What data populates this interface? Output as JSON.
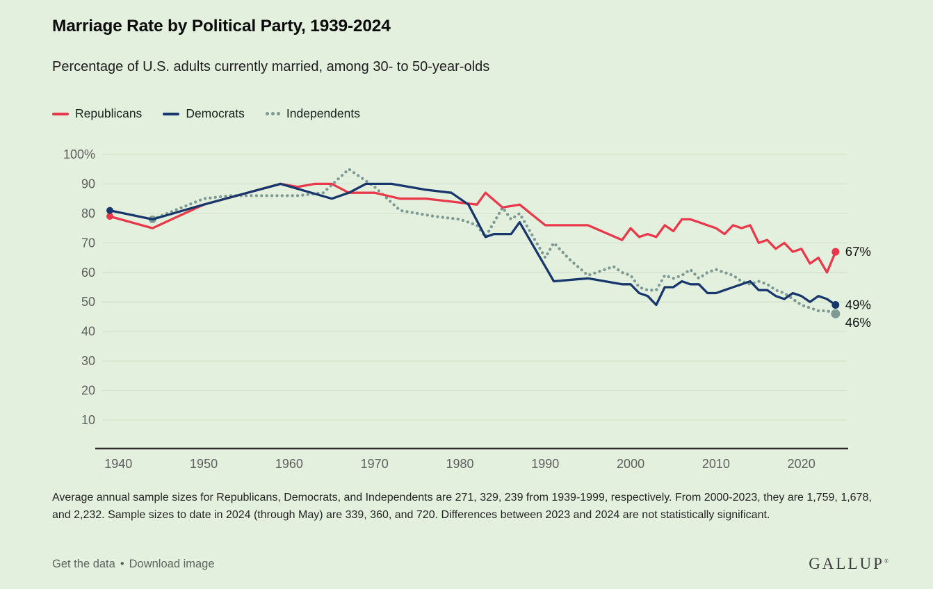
{
  "header": {
    "title": "Marriage Rate by Political Party, 1939-2024",
    "subtitle": "Percentage of U.S. adults currently married, among 30- to 50-year-olds"
  },
  "legend": {
    "items": [
      {
        "label": "Republicans",
        "color": "#ea384b",
        "style": "solid"
      },
      {
        "label": "Democrats",
        "color": "#17366b",
        "style": "solid"
      },
      {
        "label": "Independents",
        "color": "#7d9a94",
        "style": "dotted"
      }
    ]
  },
  "chart_data": {
    "type": "line",
    "title": "Marriage Rate by Political Party, 1939-2024",
    "xlabel": "",
    "ylabel": "Percentage of U.S. adults currently married",
    "x_axis": {
      "range": [
        1939,
        2024
      ],
      "ticks": [
        1940,
        1950,
        1960,
        1970,
        1980,
        1990,
        2000,
        2010,
        2020
      ]
    },
    "y_axis": {
      "range": [
        0,
        100
      ],
      "unit": "%",
      "ticks": [
        {
          "value": 100,
          "label": "100%"
        },
        {
          "value": 90,
          "label": "90"
        },
        {
          "value": 80,
          "label": "80"
        },
        {
          "value": 70,
          "label": "70"
        },
        {
          "value": 60,
          "label": "60"
        },
        {
          "value": 50,
          "label": "50"
        },
        {
          "value": 40,
          "label": "40"
        },
        {
          "value": 30,
          "label": "30"
        },
        {
          "value": 20,
          "label": "20"
        },
        {
          "value": 10,
          "label": "10"
        }
      ]
    },
    "grid": true,
    "legend_position": "top-left",
    "series": [
      {
        "name": "Republicans",
        "color": "#ea384b",
        "line_style": "solid",
        "end_label": "67%",
        "end_label_dy": 0,
        "points": [
          [
            1939,
            79
          ],
          [
            1944,
            75
          ],
          [
            1950,
            83
          ],
          [
            1959,
            90
          ],
          [
            1961,
            89
          ],
          [
            1963,
            90
          ],
          [
            1965,
            90
          ],
          [
            1967,
            87
          ],
          [
            1970,
            87
          ],
          [
            1973,
            85
          ],
          [
            1976,
            85
          ],
          [
            1979,
            84
          ],
          [
            1982,
            83
          ],
          [
            1983,
            87
          ],
          [
            1985,
            82
          ],
          [
            1987,
            83
          ],
          [
            1990,
            76
          ],
          [
            1995,
            76
          ],
          [
            1999,
            71
          ],
          [
            2000,
            75
          ],
          [
            2001,
            72
          ],
          [
            2002,
            73
          ],
          [
            2003,
            72
          ],
          [
            2004,
            76
          ],
          [
            2005,
            74
          ],
          [
            2006,
            78
          ],
          [
            2007,
            78
          ],
          [
            2008,
            77
          ],
          [
            2009,
            76
          ],
          [
            2010,
            75
          ],
          [
            2011,
            73
          ],
          [
            2012,
            76
          ],
          [
            2013,
            75
          ],
          [
            2014,
            76
          ],
          [
            2015,
            70
          ],
          [
            2016,
            71
          ],
          [
            2017,
            68
          ],
          [
            2018,
            70
          ],
          [
            2019,
            67
          ],
          [
            2020,
            68
          ],
          [
            2021,
            63
          ],
          [
            2022,
            65
          ],
          [
            2023,
            60
          ],
          [
            2024,
            67
          ]
        ]
      },
      {
        "name": "Democrats",
        "color": "#17366b",
        "line_style": "solid",
        "end_label": "49%",
        "end_label_dy": 0,
        "points": [
          [
            1939,
            81
          ],
          [
            1944,
            78
          ],
          [
            1950,
            83
          ],
          [
            1959,
            90
          ],
          [
            1965,
            85
          ],
          [
            1967,
            87
          ],
          [
            1969,
            90
          ],
          [
            1972,
            90
          ],
          [
            1976,
            88
          ],
          [
            1979,
            87
          ],
          [
            1981,
            83
          ],
          [
            1983,
            72
          ],
          [
            1984,
            73
          ],
          [
            1986,
            73
          ],
          [
            1987,
            77
          ],
          [
            1991,
            57
          ],
          [
            1995,
            58
          ],
          [
            1999,
            56
          ],
          [
            2000,
            56
          ],
          [
            2001,
            53
          ],
          [
            2002,
            52
          ],
          [
            2003,
            49
          ],
          [
            2004,
            55
          ],
          [
            2005,
            55
          ],
          [
            2006,
            57
          ],
          [
            2007,
            56
          ],
          [
            2008,
            56
          ],
          [
            2009,
            53
          ],
          [
            2010,
            53
          ],
          [
            2011,
            54
          ],
          [
            2012,
            55
          ],
          [
            2013,
            56
          ],
          [
            2014,
            57
          ],
          [
            2015,
            54
          ],
          [
            2016,
            54
          ],
          [
            2017,
            52
          ],
          [
            2018,
            51
          ],
          [
            2019,
            53
          ],
          [
            2020,
            52
          ],
          [
            2021,
            50
          ],
          [
            2022,
            52
          ],
          [
            2023,
            51
          ],
          [
            2024,
            49
          ]
        ]
      },
      {
        "name": "Independents",
        "color": "#7d9a94",
        "line_style": "dotted",
        "end_label": "46%",
        "end_label_dy": 13,
        "points": [
          [
            1944,
            78
          ],
          [
            1950,
            85
          ],
          [
            1953,
            86
          ],
          [
            1957,
            86
          ],
          [
            1961,
            86
          ],
          [
            1964,
            87
          ],
          [
            1967,
            95
          ],
          [
            1970,
            89
          ],
          [
            1973,
            81
          ],
          [
            1977,
            79
          ],
          [
            1980,
            78
          ],
          [
            1982,
            76
          ],
          [
            1983,
            72
          ],
          [
            1985,
            82
          ],
          [
            1986,
            78
          ],
          [
            1987,
            80
          ],
          [
            1990,
            65
          ],
          [
            1991,
            70
          ],
          [
            1992,
            67
          ],
          [
            1993,
            64
          ],
          [
            1995,
            59
          ],
          [
            1998,
            62
          ],
          [
            1999,
            60
          ],
          [
            2000,
            59
          ],
          [
            2001,
            55
          ],
          [
            2002,
            54
          ],
          [
            2003,
            54
          ],
          [
            2004,
            59
          ],
          [
            2005,
            58
          ],
          [
            2006,
            59
          ],
          [
            2007,
            61
          ],
          [
            2008,
            58
          ],
          [
            2009,
            60
          ],
          [
            2010,
            61
          ],
          [
            2011,
            60
          ],
          [
            2012,
            59
          ],
          [
            2013,
            57
          ],
          [
            2014,
            56
          ],
          [
            2015,
            57
          ],
          [
            2016,
            56
          ],
          [
            2017,
            54
          ],
          [
            2018,
            53
          ],
          [
            2019,
            51
          ],
          [
            2020,
            49
          ],
          [
            2021,
            48
          ],
          [
            2022,
            47
          ],
          [
            2023,
            47
          ],
          [
            2024,
            46
          ]
        ]
      }
    ]
  },
  "colors": {
    "background": "#e4f0de",
    "gridline": "#d3e2cc",
    "axis": "#2b2b2b",
    "tick_label": "#5f5f5f",
    "end_label": "#111111"
  },
  "footnote": {
    "text": "Average annual sample sizes for Republicans, Democrats, and Independents are 271, 329, 239 from 1939-1999, respectively. From 2000-2023, they are 1,759, 1,678, and 2,232. Sample sizes to date in 2024 (through May) are 339, 360, and 720. Differences between 2023 and 2024 are not statistically significant."
  },
  "footer": {
    "get_data_label": "Get the data",
    "separator": "•",
    "download_label": "Download image",
    "brand": "GALLUP",
    "brand_mark": "®"
  }
}
